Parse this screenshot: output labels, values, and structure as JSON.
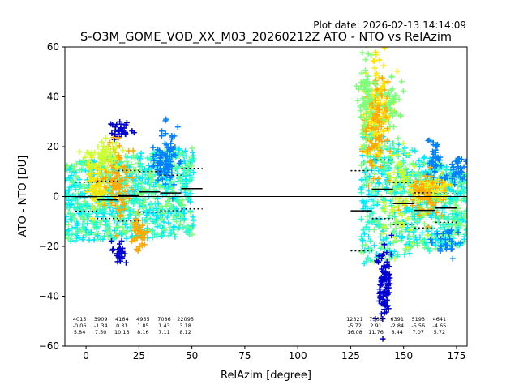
{
  "plot_date": "Plot date: 2026-02-13 14:14:09",
  "chart_data": {
    "type": "scatter",
    "title": "S-O3M_GOME_VOD_XX_M03_20260212Z ATO - NTO vs RelAzim",
    "xlabel": "RelAzim [degree]",
    "ylabel": "ATO - NTO [DU]",
    "xlim": [
      -10,
      180
    ],
    "ylim": [
      -60,
      60
    ],
    "xticks": [
      0,
      25,
      50,
      75,
      100,
      125,
      150,
      175
    ],
    "yticks": [
      -60,
      -40,
      -20,
      0,
      20,
      40,
      60
    ],
    "xtick_labels": [
      "0",
      "25",
      "50",
      "75",
      "100",
      "125",
      "150",
      "175"
    ],
    "ytick_labels": [
      "−60",
      "−40",
      "−20",
      "0",
      "20",
      "40",
      "60"
    ],
    "grid": false,
    "zero_line": 0,
    "marker": "+",
    "colors": {
      "dark_blue": "#0000d0",
      "blue": "#0080ff",
      "cyan": "#00e8ff",
      "aquamarine": "#2bffc8",
      "green": "#7dff7a",
      "yellow_green": "#cbff2e",
      "yellow": "#ffe600",
      "orange": "#ffa800"
    },
    "bins": [
      {
        "x": 0,
        "count": "4015",
        "mean": "-0.06",
        "std": "5.84",
        "mean_val": -0.06,
        "std_val": 5.84
      },
      {
        "x": 10,
        "count": "3909",
        "mean": "-1.34",
        "std": "7.50",
        "mean_val": -1.34,
        "std_val": 7.5
      },
      {
        "x": 20,
        "count": "4164",
        "mean": "0.31",
        "std": "10.13",
        "mean_val": 0.31,
        "std_val": 10.13
      },
      {
        "x": 30,
        "count": "4955",
        "mean": "1.85",
        "std": "8.16",
        "mean_val": 1.85,
        "std_val": 8.16
      },
      {
        "x": 40,
        "count": "7086",
        "mean": "1.43",
        "std": "7.11",
        "mean_val": 1.43,
        "std_val": 7.11
      },
      {
        "x": 50,
        "count": "22095",
        "mean": "3.18",
        "std": "8.12",
        "mean_val": 3.18,
        "std_val": 8.12
      },
      {
        "x": 130,
        "count": "12321",
        "mean": "-5.72",
        "std": "16.08",
        "mean_val": -5.72,
        "std_val": 16.08
      },
      {
        "x": 140,
        "count": "7366",
        "mean": "2.91",
        "std": "11.76",
        "mean_val": 2.91,
        "std_val": 11.76
      },
      {
        "x": 150,
        "count": "6391",
        "mean": "-2.84",
        "std": "8.44",
        "mean_val": -2.84,
        "std_val": 8.44
      },
      {
        "x": 160,
        "count": "5193",
        "mean": "-5.56",
        "std": "7.07",
        "mean_val": -5.56,
        "std_val": 7.07
      },
      {
        "x": 170,
        "count": "4641",
        "mean": "-4.65",
        "std": "5.72",
        "mean_val": -4.65,
        "std_val": 5.72
      }
    ],
    "scatter_regions": [
      {
        "x_range": [
          -10,
          51
        ],
        "y_center": [
          -2,
          2
        ],
        "spread": [
          16,
          18
        ],
        "colors": [
          "aquamarine",
          "green",
          "cyan"
        ]
      },
      {
        "x_range": [
          130,
          180
        ],
        "y_center": [
          0,
          -5
        ],
        "spread": [
          28,
          14
        ],
        "colors": [
          "aquamarine",
          "green",
          "cyan"
        ]
      }
    ],
    "scatter_clusters": [
      {
        "x": 38,
        "y": 15,
        "sx": 3,
        "sy": 6,
        "n": 90,
        "color": "blue"
      },
      {
        "x": 16,
        "y": 27,
        "sx": 2,
        "sy": 2,
        "n": 30,
        "color": "dark_blue"
      },
      {
        "x": 16,
        "y": -23,
        "sx": 1.5,
        "sy": 3,
        "n": 30,
        "color": "dark_blue"
      },
      {
        "x": 5,
        "y": 5,
        "sx": 2,
        "sy": 5,
        "n": 60,
        "color": "yellow"
      },
      {
        "x": 15,
        "y": 5,
        "sx": 3,
        "sy": 7,
        "n": 90,
        "color": "orange"
      },
      {
        "x": 25,
        "y": -16,
        "sx": 2,
        "sy": 4,
        "n": 40,
        "color": "orange"
      },
      {
        "x": 8,
        "y": 17,
        "sx": 4,
        "sy": 3,
        "n": 60,
        "color": "yellow_green"
      },
      {
        "x": 137,
        "y": 35,
        "sx": 3,
        "sy": 10,
        "n": 120,
        "color": "yellow"
      },
      {
        "x": 137,
        "y": 28,
        "sx": 2.5,
        "sy": 10,
        "n": 90,
        "color": "orange"
      },
      {
        "x": 132,
        "y": 40,
        "sx": 2,
        "sy": 10,
        "n": 70,
        "color": "green"
      },
      {
        "x": 141,
        "y": -35,
        "sx": 1.5,
        "sy": 8,
        "n": 90,
        "color": "dark_blue"
      },
      {
        "x": 145,
        "y": 38,
        "sx": 2,
        "sy": 5,
        "n": 40,
        "color": "green"
      },
      {
        "x": 165,
        "y": 14,
        "sx": 2,
        "sy": 4,
        "n": 40,
        "color": "blue"
      },
      {
        "x": 175,
        "y": 10,
        "sx": 3,
        "sy": 3,
        "n": 40,
        "color": "blue"
      },
      {
        "x": 163,
        "y": 4,
        "sx": 4,
        "sy": 3,
        "n": 60,
        "color": "yellow"
      },
      {
        "x": 160,
        "y": 0,
        "sx": 5,
        "sy": 5,
        "n": 60,
        "color": "orange"
      },
      {
        "x": 170,
        "y": -18,
        "sx": 3,
        "sy": 3,
        "n": 30,
        "color": "blue"
      },
      {
        "x": 150,
        "y": 0,
        "sx": 6,
        "sy": 10,
        "n": 60,
        "color": "yellow_green"
      }
    ]
  }
}
